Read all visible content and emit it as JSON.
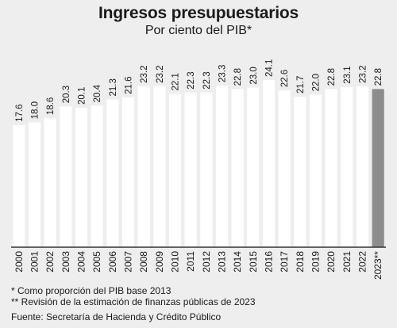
{
  "title": "Ingresos presupuestarios",
  "subtitle": "Por ciento del PIB*",
  "chart_data": {
    "type": "bar",
    "categories": [
      "2000",
      "2001",
      "2002",
      "2003",
      "2004",
      "2005",
      "2006",
      "2007",
      "2008",
      "2009",
      "2010",
      "2011",
      "2012",
      "2013",
      "2014",
      "2015",
      "2016",
      "2017",
      "2018",
      "2019",
      "2020",
      "2021",
      "2022",
      "2023**"
    ],
    "values": [
      17.6,
      18.0,
      18.6,
      20.3,
      20.1,
      20.4,
      21.3,
      21.6,
      23.2,
      23.2,
      22.1,
      22.3,
      22.3,
      23.3,
      22.8,
      23.0,
      24.1,
      22.6,
      21.7,
      22.0,
      22.8,
      23.1,
      23.2,
      22.8
    ],
    "data_labels": [
      "17.6",
      "18.0",
      "18.6",
      "20.3",
      "20.1",
      "20.4",
      "21.3",
      "21.6",
      "23.2",
      "23.2",
      "22.1",
      "22.3",
      "22.3",
      "23.3",
      "22.8",
      "23.0",
      "24.1",
      "22.6",
      "21.7",
      "22.0",
      "22.8",
      "23.1",
      "23.2",
      "22.8"
    ],
    "title": "Ingresos presupuestarios",
    "subtitle": "Por ciento del PIB*",
    "xlabel": "",
    "ylabel": "",
    "ylim": [
      0,
      24.1
    ],
    "grid": false,
    "legend": "none",
    "colors": {
      "bar": "#ffffff",
      "highlight": "#8c8c8c",
      "baseline": "#333333"
    },
    "highlight_index": 23
  },
  "footnotes": [
    "* Como proporción del PIB base 2013",
    "** Revisión de la estimación de finanzas públicas de 2023",
    "Fuente: Secretaría de Hacienda y Crédito Público"
  ]
}
